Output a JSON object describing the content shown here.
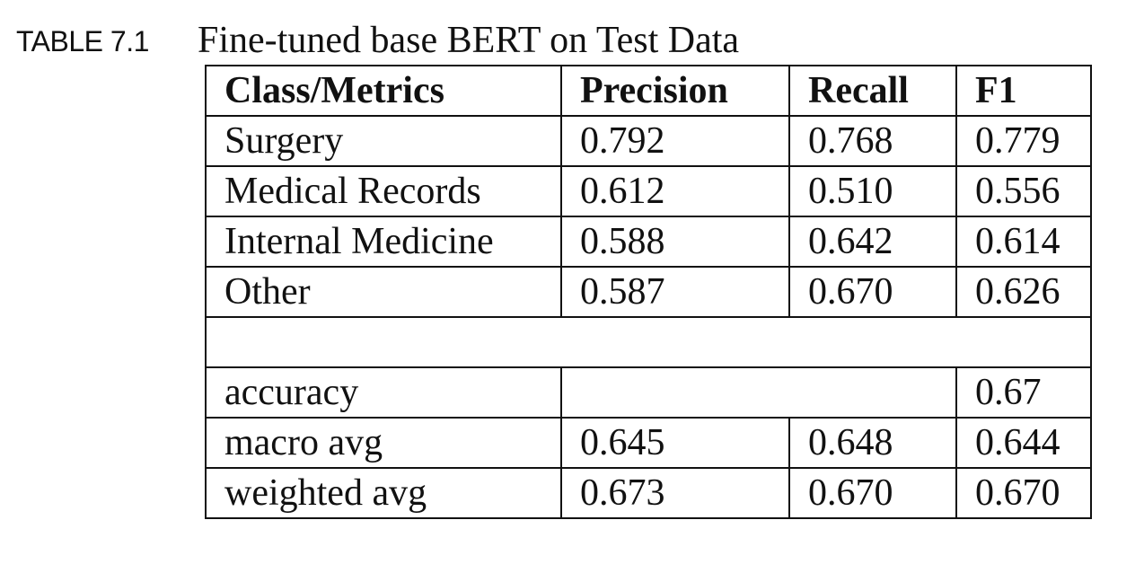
{
  "caption": {
    "label": "TABLE 7.1",
    "title": "Fine-tuned base BERT on Test Data"
  },
  "table": {
    "headers": [
      "Class/Metrics",
      "Precision",
      "Recall",
      "F1"
    ],
    "class_rows": [
      {
        "class": "Surgery",
        "precision": "0.792",
        "recall": "0.768",
        "f1": "0.779"
      },
      {
        "class": "Medical Records",
        "precision": "0.612",
        "recall": "0.510",
        "f1": "0.556"
      },
      {
        "class": "Internal Medicine",
        "precision": "0.588",
        "recall": "0.642",
        "f1": "0.614"
      },
      {
        "class": "Other",
        "precision": "0.587",
        "recall": "0.670",
        "f1": "0.626"
      }
    ],
    "accuracy": {
      "label": "accuracy",
      "f1": "0.67"
    },
    "summary_rows": [
      {
        "label": "macro avg",
        "precision": "0.645",
        "recall": "0.648",
        "f1": "0.644"
      },
      {
        "label": "weighted avg",
        "precision": "0.673",
        "recall": "0.670",
        "f1": "0.670"
      }
    ]
  }
}
